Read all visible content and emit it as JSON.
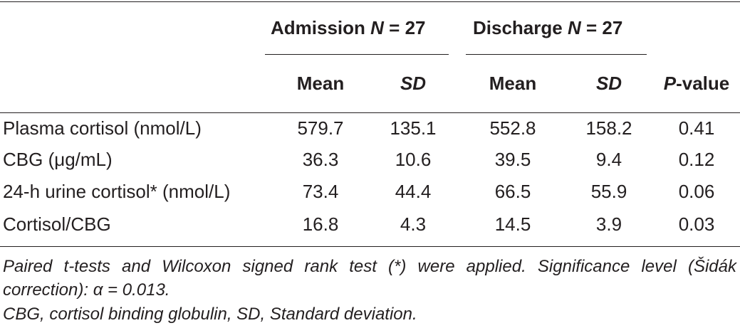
{
  "table": {
    "groups": [
      {
        "label": "Admission",
        "n_label": "N",
        "n_value": " = 27"
      },
      {
        "label": "Discharge",
        "n_label": "N",
        "n_value": " = 27"
      }
    ],
    "columns": {
      "mean1": "Mean",
      "sd1": "SD",
      "mean2": "Mean",
      "sd2": "SD",
      "pvalue_italic": "P",
      "pvalue_rest": "-value"
    },
    "rows": [
      {
        "label": "Plasma cortisol (nmol/L)",
        "adm_mean": "579.7",
        "adm_sd": "135.1",
        "dis_mean": "552.8",
        "dis_sd": "158.2",
        "p": "0.41"
      },
      {
        "label": "CBG (μg/mL)",
        "adm_mean": "36.3",
        "adm_sd": "10.6",
        "dis_mean": "39.5",
        "dis_sd": "9.4",
        "p": "0.12"
      },
      {
        "label": "24-h urine cortisol* (nmol/L)",
        "adm_mean": "73.4",
        "adm_sd": "44.4",
        "dis_mean": "66.5",
        "dis_sd": "55.9",
        "p": "0.06"
      },
      {
        "label": "Cortisol/CBG",
        "adm_mean": "16.8",
        "adm_sd": "4.3",
        "dis_mean": "14.5",
        "dis_sd": "3.9",
        "p": "0.03"
      }
    ]
  },
  "footnotes": {
    "line1": "Paired t-tests and Wilcoxon signed rank test (*) were applied. Significance level (Šidák correction): α = 0.013.",
    "line2": "CBG, cortisol binding globulin, SD, Standard deviation."
  }
}
